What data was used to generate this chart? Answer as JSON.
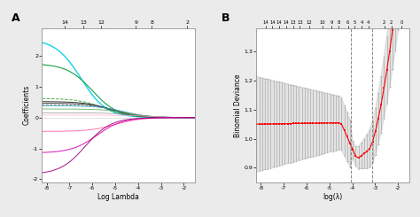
{
  "bg_color": "#ebebeb",
  "panel_bg": "#ffffff",
  "A_xlabel": "Log Lambda",
  "A_ylabel": "Coefficients",
  "A_xlim": [
    -8.2,
    -1.5
  ],
  "A_ylim": [
    -2.1,
    2.9
  ],
  "A_xticks": [
    -8,
    -7,
    -6,
    -5,
    -4,
    -3,
    -2
  ],
  "A_top_labels": [
    "14",
    "13",
    "12",
    "9",
    "8",
    "2"
  ],
  "A_top_positions": [
    -7.2,
    -6.4,
    -5.6,
    -4.1,
    -3.4,
    -1.85
  ],
  "A_yticks": [
    -2,
    -1,
    0,
    1,
    2
  ],
  "A_ytick_labels": [
    "-2",
    "-1",
    "0",
    "1",
    "2"
  ],
  "B_xlabel": "log(λ)",
  "B_ylabel": "Binomial Deviance",
  "B_xlim": [
    -8.2,
    -1.5
  ],
  "B_ylim": [
    0.85,
    1.38
  ],
  "B_xticks": [
    -8,
    -7,
    -6,
    -5,
    -4,
    -3,
    -2
  ],
  "B_yticks": [
    0.9,
    1.0,
    1.1,
    1.2,
    1.3
  ],
  "B_ytick_labels": [
    "0.9",
    "1.0",
    "1.1",
    "1.2",
    "1.3"
  ],
  "B_top_labels": [
    "14",
    "14",
    "14",
    "14",
    "13",
    "13",
    "12",
    "10",
    "9",
    "8",
    "6",
    "5",
    "4",
    "4",
    "2",
    "2",
    "0"
  ],
  "B_top_positions": [
    -7.8,
    -7.5,
    -7.2,
    -6.9,
    -6.6,
    -6.3,
    -5.9,
    -5.3,
    -4.9,
    -4.6,
    -4.2,
    -3.9,
    -3.6,
    -3.3,
    -2.6,
    -2.3,
    -1.85
  ],
  "B_vline1": -4.05,
  "B_vline2": -3.15,
  "curves_A": [
    {
      "coef": 2.55,
      "entry": -6.5,
      "color": "#00ccee",
      "lw": 1.0,
      "ls": "-"
    },
    {
      "coef": 1.75,
      "entry": -6.0,
      "color": "#009933",
      "lw": 0.8,
      "ls": "-"
    },
    {
      "coef": 0.62,
      "entry": -5.5,
      "color": "#33aa33",
      "lw": 0.7,
      "ls": "--"
    },
    {
      "coef": 0.52,
      "entry": -5.2,
      "color": "#222222",
      "lw": 0.7,
      "ls": "-"
    },
    {
      "coef": 0.47,
      "entry": -5.0,
      "color": "#444444",
      "lw": 0.7,
      "ls": "-"
    },
    {
      "coef": 0.42,
      "entry": -4.8,
      "color": "#555555",
      "lw": 0.6,
      "ls": "--"
    },
    {
      "coef": 0.38,
      "entry": -4.6,
      "color": "#33aacc",
      "lw": 0.6,
      "ls": "-"
    },
    {
      "coef": 0.28,
      "entry": -4.4,
      "color": "#55aa55",
      "lw": 0.6,
      "ls": "-"
    },
    {
      "coef": 0.15,
      "entry": -4.0,
      "color": "#888888",
      "lw": 0.5,
      "ls": "-"
    },
    {
      "coef": 0.08,
      "entry": -3.5,
      "color": "#ffaacc",
      "lw": 0.5,
      "ls": "-"
    },
    {
      "coef": -0.45,
      "entry": -5.0,
      "color": "#ff66aa",
      "lw": 0.7,
      "ls": "-"
    },
    {
      "coef": -1.15,
      "entry": -5.8,
      "color": "#dd00aa",
      "lw": 0.7,
      "ls": "-"
    },
    {
      "coef": -1.85,
      "entry": -6.3,
      "color": "#990077",
      "lw": 0.7,
      "ls": "-"
    }
  ]
}
